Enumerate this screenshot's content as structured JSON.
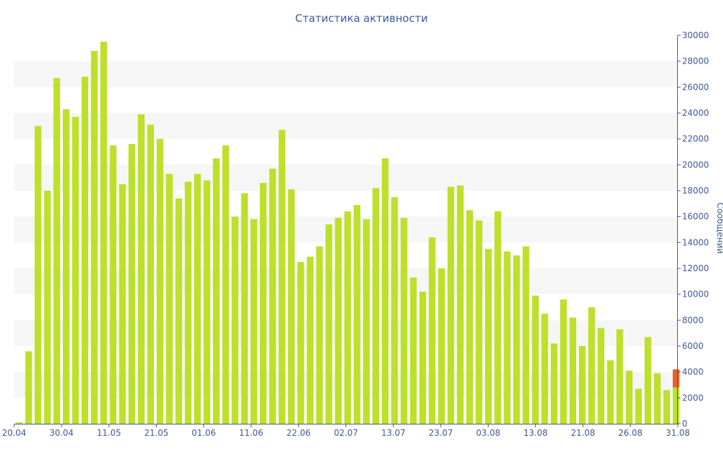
{
  "chart_data": {
    "type": "bar",
    "title": "Статистика активности",
    "ylabel": "Сообщений",
    "ylim": [
      0,
      30000
    ],
    "yticks": [
      0,
      2000,
      4000,
      6000,
      8000,
      10000,
      12000,
      14000,
      16000,
      18000,
      20000,
      22000,
      24000,
      26000,
      28000,
      30000
    ],
    "xtick_labels": [
      "20.04",
      "30.04",
      "11.05",
      "21.05",
      "01.06",
      "11.06",
      "22.06",
      "02.07",
      "13.07",
      "23.07",
      "03.08",
      "13.08",
      "21.08",
      "26.08",
      "31.08"
    ],
    "grid": "horizontal alternating bands",
    "colors": {
      "bar": "#bde02a",
      "highlight": "#e8622c",
      "band": "#f6f6f6",
      "axis": "#3b5998"
    },
    "series": [
      {
        "values": [
          100,
          5600,
          23000,
          18000,
          26700,
          24300,
          23700,
          26800,
          28800,
          29500,
          21500,
          18500,
          21600,
          23900,
          23100,
          22000,
          19300,
          17400,
          18700,
          19300,
          18800,
          20500,
          21500,
          16000,
          17800,
          15800,
          18600,
          19700,
          22700,
          18100,
          12500,
          12900,
          13700,
          15400,
          15900,
          16400,
          16900,
          15800,
          18200,
          20500,
          17500,
          15900,
          11300,
          10200,
          14400,
          12000,
          18300,
          18400,
          16500,
          15700,
          13500,
          16400,
          13300,
          13000,
          13700,
          9900,
          8500,
          6200,
          9600,
          8200,
          6000,
          9000,
          7400,
          4900,
          7300,
          4100,
          2700,
          6700,
          3900,
          2600,
          2800
        ]
      },
      {
        "values": [
          0,
          0,
          0,
          0,
          0,
          0,
          0,
          0,
          0,
          0,
          0,
          0,
          0,
          0,
          0,
          0,
          0,
          0,
          0,
          0,
          0,
          0,
          0,
          0,
          0,
          0,
          0,
          0,
          0,
          0,
          0,
          0,
          0,
          0,
          0,
          0,
          0,
          0,
          0,
          0,
          0,
          0,
          0,
          0,
          0,
          0,
          0,
          0,
          0,
          0,
          0,
          0,
          0,
          0,
          0,
          0,
          0,
          0,
          0,
          0,
          0,
          0,
          0,
          0,
          0,
          0,
          0,
          0,
          0,
          0,
          1400
        ]
      }
    ]
  }
}
